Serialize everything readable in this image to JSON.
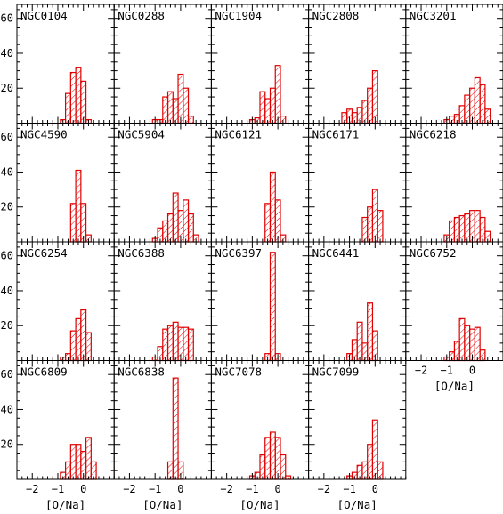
{
  "figure": {
    "hatch_color": "#e00000",
    "x_axis_title": "[O/Na]",
    "x_tick_labels": [
      "−2",
      "−1",
      "0"
    ],
    "y_tick_labels": [
      "20",
      "40",
      "60"
    ]
  },
  "chart_data": [
    {
      "type": "bar",
      "title": "NGC0104",
      "bin_edges": [
        -1.3,
        -1.1,
        -0.9,
        -0.7,
        -0.5,
        -0.3,
        -0.1,
        0.1,
        0.3,
        0.5,
        0.7
      ],
      "counts": [
        0,
        0,
        2,
        17,
        29,
        32,
        24,
        2,
        0,
        0
      ],
      "xlim": [
        -2.6,
        1.2
      ],
      "ylim": [
        0,
        68
      ]
    },
    {
      "type": "bar",
      "title": "NGC0288",
      "bin_edges": [
        -1.3,
        -1.1,
        -0.9,
        -0.7,
        -0.5,
        -0.3,
        -0.1,
        0.1,
        0.3,
        0.5,
        0.7
      ],
      "counts": [
        0,
        2,
        2,
        15,
        18,
        14,
        28,
        20,
        4,
        0
      ],
      "xlim": [
        -2.6,
        1.2
      ],
      "ylim": [
        0,
        68
      ]
    },
    {
      "type": "bar",
      "title": "NGC1904",
      "bin_edges": [
        -1.3,
        -1.1,
        -0.9,
        -0.7,
        -0.5,
        -0.3,
        -0.1,
        0.1,
        0.3,
        0.5,
        0.7
      ],
      "counts": [
        0,
        2,
        3,
        18,
        14,
        20,
        33,
        4,
        0,
        0
      ],
      "xlim": [
        -2.6,
        1.2
      ],
      "ylim": [
        0,
        68
      ]
    },
    {
      "type": "bar",
      "title": "NGC2808",
      "bin_edges": [
        -1.3,
        -1.1,
        -0.9,
        -0.7,
        -0.5,
        -0.3,
        -0.1,
        0.1,
        0.3,
        0.5,
        0.7
      ],
      "counts": [
        6,
        8,
        6,
        9,
        13,
        20,
        30,
        0,
        0,
        0
      ],
      "xlim": [
        -2.6,
        1.2
      ],
      "ylim": [
        0,
        68
      ]
    },
    {
      "type": "bar",
      "title": "NGC3201",
      "bin_edges": [
        -1.3,
        -1.1,
        -0.9,
        -0.7,
        -0.5,
        -0.3,
        -0.1,
        0.1,
        0.3,
        0.5,
        0.7
      ],
      "counts": [
        0,
        2,
        4,
        5,
        10,
        16,
        20,
        26,
        22,
        8
      ],
      "xlim": [
        -2.6,
        1.2
      ],
      "ylim": [
        0,
        68
      ]
    },
    {
      "type": "bar",
      "title": "NGC4590",
      "bin_edges": [
        -1.3,
        -1.1,
        -0.9,
        -0.7,
        -0.5,
        -0.3,
        -0.1,
        0.1,
        0.3,
        0.5,
        0.7
      ],
      "counts": [
        0,
        0,
        0,
        0,
        22,
        41,
        22,
        4,
        0,
        0
      ],
      "xlim": [
        -2.6,
        1.2
      ],
      "ylim": [
        0,
        68
      ]
    },
    {
      "type": "bar",
      "title": "NGC5904",
      "bin_edges": [
        -1.3,
        -1.1,
        -0.9,
        -0.7,
        -0.5,
        -0.3,
        -0.1,
        0.1,
        0.3,
        0.5,
        0.7
      ],
      "counts": [
        0,
        2,
        8,
        12,
        16,
        28,
        18,
        24,
        16,
        4
      ],
      "xlim": [
        -2.6,
        1.2
      ],
      "ylim": [
        0,
        68
      ]
    },
    {
      "type": "bar",
      "title": "NGC6121",
      "bin_edges": [
        -1.3,
        -1.1,
        -0.9,
        -0.7,
        -0.5,
        -0.3,
        -0.1,
        0.1,
        0.3,
        0.5,
        0.7
      ],
      "counts": [
        0,
        0,
        0,
        0,
        22,
        40,
        24,
        4,
        0,
        0
      ],
      "xlim": [
        -2.6,
        1.2
      ],
      "ylim": [
        0,
        68
      ]
    },
    {
      "type": "bar",
      "title": "NGC6171",
      "bin_edges": [
        -1.3,
        -1.1,
        -0.9,
        -0.7,
        -0.5,
        -0.3,
        -0.1,
        0.1,
        0.3,
        0.5,
        0.7
      ],
      "counts": [
        0,
        0,
        0,
        0,
        14,
        20,
        30,
        18,
        0,
        0
      ],
      "xlim": [
        -2.6,
        1.2
      ],
      "ylim": [
        0,
        68
      ]
    },
    {
      "type": "bar",
      "title": "NGC6218",
      "bin_edges": [
        -1.3,
        -1.1,
        -0.9,
        -0.7,
        -0.5,
        -0.3,
        -0.1,
        0.1,
        0.3,
        0.5,
        0.7
      ],
      "counts": [
        0,
        4,
        12,
        14,
        15,
        16,
        18,
        18,
        14,
        6
      ],
      "xlim": [
        -2.6,
        1.2
      ],
      "ylim": [
        0,
        68
      ]
    },
    {
      "type": "bar",
      "title": "NGC6254",
      "bin_edges": [
        -1.3,
        -1.1,
        -0.9,
        -0.7,
        -0.5,
        -0.3,
        -0.1,
        0.1,
        0.3,
        0.5,
        0.7
      ],
      "counts": [
        0,
        0,
        2,
        4,
        17,
        24,
        29,
        16,
        0,
        0
      ],
      "xlim": [
        -2.6,
        1.2
      ],
      "ylim": [
        0,
        68
      ]
    },
    {
      "type": "bar",
      "title": "NGC6388",
      "bin_edges": [
        -1.3,
        -1.1,
        -0.9,
        -0.7,
        -0.5,
        -0.3,
        -0.1,
        0.1,
        0.3,
        0.5,
        0.7
      ],
      "counts": [
        0,
        2,
        8,
        18,
        20,
        22,
        19,
        19,
        18,
        0
      ],
      "xlim": [
        -2.6,
        1.2
      ],
      "ylim": [
        0,
        68
      ]
    },
    {
      "type": "bar",
      "title": "NGC6397",
      "bin_edges": [
        -1.3,
        -1.1,
        -0.9,
        -0.7,
        -0.5,
        -0.3,
        -0.1,
        0.1,
        0.3,
        0.5,
        0.7
      ],
      "counts": [
        0,
        0,
        0,
        0,
        4,
        62,
        4,
        0,
        0,
        0
      ],
      "xlim": [
        -2.6,
        1.2
      ],
      "ylim": [
        0,
        68
      ]
    },
    {
      "type": "bar",
      "title": "NGC6441",
      "bin_edges": [
        -1.3,
        -1.1,
        -0.9,
        -0.7,
        -0.5,
        -0.3,
        -0.1,
        0.1,
        0.3,
        0.5,
        0.7
      ],
      "counts": [
        0,
        4,
        12,
        22,
        10,
        33,
        17,
        0,
        0,
        0
      ],
      "xlim": [
        -2.6,
        1.2
      ],
      "ylim": [
        0,
        68
      ]
    },
    {
      "type": "bar",
      "title": "NGC6752",
      "bin_edges": [
        -1.3,
        -1.1,
        -0.9,
        -0.7,
        -0.5,
        -0.3,
        -0.1,
        0.1,
        0.3,
        0.5,
        0.7
      ],
      "counts": [
        0,
        2,
        5,
        11,
        24,
        20,
        18,
        19,
        6,
        0
      ],
      "xlim": [
        -2.6,
        1.2
      ],
      "ylim": [
        0,
        68
      ]
    },
    {
      "type": "bar",
      "title": "NGC6809",
      "bin_edges": [
        -1.3,
        -1.1,
        -0.9,
        -0.7,
        -0.5,
        -0.3,
        -0.1,
        0.1,
        0.3,
        0.5,
        0.7
      ],
      "counts": [
        0,
        0,
        4,
        10,
        20,
        20,
        16,
        24,
        10,
        0
      ],
      "xlim": [
        -2.6,
        1.2
      ],
      "ylim": [
        0,
        68
      ]
    },
    {
      "type": "bar",
      "title": "NGC6838",
      "bin_edges": [
        -1.3,
        -1.1,
        -0.9,
        -0.7,
        -0.5,
        -0.3,
        -0.1,
        0.1,
        0.3,
        0.5,
        0.7
      ],
      "counts": [
        0,
        0,
        0,
        0,
        10,
        58,
        10,
        0,
        0,
        0
      ],
      "xlim": [
        -2.6,
        1.2
      ],
      "ylim": [
        0,
        68
      ]
    },
    {
      "type": "bar",
      "title": "NGC7078",
      "bin_edges": [
        -1.3,
        -1.1,
        -0.9,
        -0.7,
        -0.5,
        -0.3,
        -0.1,
        0.1,
        0.3,
        0.5,
        0.7
      ],
      "counts": [
        0,
        2,
        4,
        14,
        24,
        27,
        24,
        14,
        2,
        0
      ],
      "xlim": [
        -2.6,
        1.2
      ],
      "ylim": [
        0,
        68
      ]
    },
    {
      "type": "bar",
      "title": "NGC7099",
      "bin_edges": [
        -1.3,
        -1.1,
        -0.9,
        -0.7,
        -0.5,
        -0.3,
        -0.1,
        0.1,
        0.3,
        0.5,
        0.7
      ],
      "counts": [
        0,
        2,
        4,
        8,
        10,
        20,
        34,
        10,
        0,
        0
      ],
      "xlim": [
        -2.6,
        1.2
      ],
      "ylim": [
        0,
        68
      ]
    }
  ]
}
